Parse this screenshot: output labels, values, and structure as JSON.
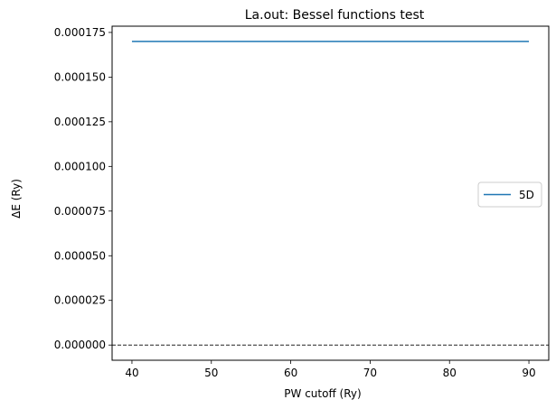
{
  "chart_data": {
    "type": "line",
    "title": "La.out: Bessel functions test",
    "xlabel": "PW cutoff (Ry)",
    "ylabel": "ΔE (Ry)",
    "xlim": [
      37.5,
      92.5
    ],
    "ylim": [
      -8.5e-06,
      0.0001785
    ],
    "x_ticks": [
      40,
      50,
      60,
      70,
      80,
      90
    ],
    "y_ticks": [
      0,
      2.5e-05,
      5e-05,
      7.5e-05,
      0.0001,
      0.000125,
      0.00015,
      0.000175
    ],
    "x_tick_labels": [
      "40",
      "50",
      "60",
      "70",
      "80",
      "90"
    ],
    "y_tick_labels": [
      "0.000000",
      "0.000025",
      "0.000050",
      "0.000075",
      "0.000100",
      "0.000125",
      "0.000150",
      "0.000175"
    ],
    "series": [
      {
        "name": "5D",
        "color": "#1f77b4",
        "x": [
          40,
          50,
          60,
          70,
          80,
          90
        ],
        "y": [
          0.00017,
          0.00017,
          0.00017,
          0.00017,
          0.00017,
          0.00017
        ]
      }
    ],
    "reference_line": {
      "y": 0,
      "style": "dashed",
      "color": "#000000"
    },
    "grid": false,
    "legend": "center-right"
  }
}
